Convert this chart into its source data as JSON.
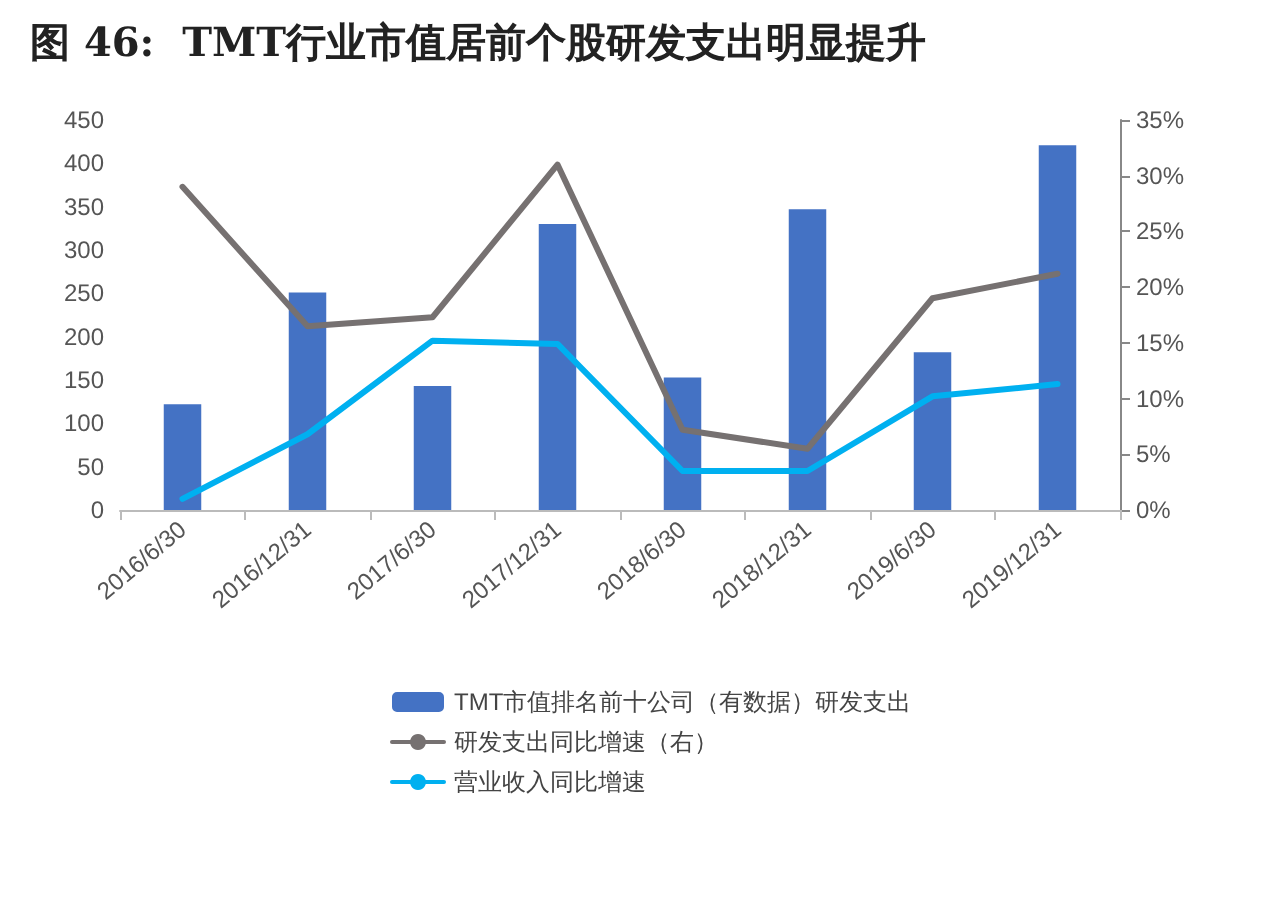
{
  "chart_data": {
    "type": "bar",
    "title": "图 46:  TMT行业市值居前个股研发支出明显提升",
    "categories": [
      "2016/6/30",
      "2016/12/31",
      "2017/6/30",
      "2017/12/31",
      "2018/6/30",
      "2018/12/31",
      "2019/6/30",
      "2019/12/31"
    ],
    "series": [
      {
        "name": "TMT市值排名前十公司（有数据）研发支出",
        "color": "#4472c4",
        "values": [
          122,
          251,
          143,
          330,
          153,
          347,
          182,
          421
        ]
      },
      {
        "name": "研发支出同比增速（右）",
        "type": "line",
        "axis": "y2",
        "color": "#767171",
        "values": [
          29,
          16.5,
          17.3,
          31,
          7.2,
          5.5,
          19,
          21.2
        ]
      },
      {
        "name": "营业收入同比增速",
        "type": "line",
        "axis": "y2",
        "color": "#00b0f0",
        "values": [
          1,
          6.8,
          15.2,
          14.9,
          3.5,
          3.5,
          10.2,
          11.3
        ]
      }
    ],
    "ylim": [
      0,
      450
    ],
    "yticks": [
      0,
      50,
      100,
      150,
      200,
      250,
      300,
      350,
      400,
      450
    ],
    "y2lim": [
      0,
      35
    ],
    "y2ticks": [
      {
        "value": 0,
        "label": "0%"
      },
      {
        "value": 5,
        "label": "5%"
      },
      {
        "value": 10,
        "label": "10%"
      },
      {
        "value": 15,
        "label": "15%"
      },
      {
        "value": 20,
        "label": "20%"
      },
      {
        "value": 25,
        "label": "25%"
      },
      {
        "value": 30,
        "label": "30%"
      },
      {
        "value": 35,
        "label": "35%"
      }
    ],
    "grid": false,
    "legend": "bottom",
    "marker": "none",
    "line_style": "solid"
  }
}
